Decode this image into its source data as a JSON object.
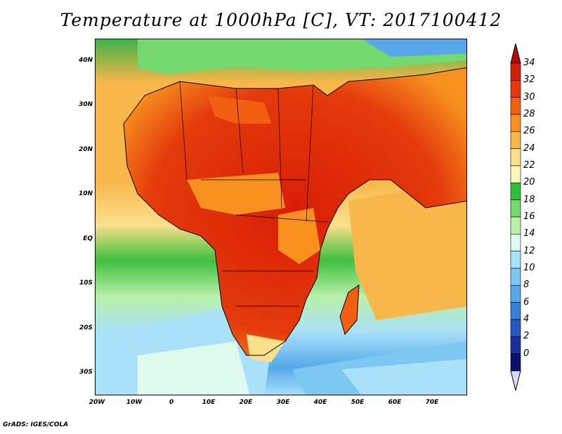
{
  "title": "Temperature at 1000hPa [C], VT: 2017100412",
  "footer": "GrADS: IGES/COLA",
  "map": {
    "variable": "Temperature at 1000hPa",
    "units": "C",
    "valid_time": "2017100412",
    "lon_range": [
      -20,
      80
    ],
    "lat_range": [
      -35,
      45
    ],
    "y_ticks": [
      {
        "lat": 40,
        "label": "40N"
      },
      {
        "lat": 30,
        "label": "30N"
      },
      {
        "lat": 20,
        "label": "20N"
      },
      {
        "lat": 10,
        "label": "10N"
      },
      {
        "lat": 0,
        "label": "EQ"
      },
      {
        "lat": -10,
        "label": "10S"
      },
      {
        "lat": -20,
        "label": "20S"
      },
      {
        "lat": -30,
        "label": "30S"
      }
    ],
    "x_ticks": [
      {
        "lon": -20,
        "label": "20W"
      },
      {
        "lon": -10,
        "label": "10W"
      },
      {
        "lon": 0,
        "label": "0"
      },
      {
        "lon": 10,
        "label": "10E"
      },
      {
        "lon": 20,
        "label": "20E"
      },
      {
        "lon": 30,
        "label": "30E"
      },
      {
        "lon": 40,
        "label": "40E"
      },
      {
        "lon": 50,
        "label": "50E"
      },
      {
        "lon": 60,
        "label": "60E"
      },
      {
        "lon": 70,
        "label": "70E"
      }
    ]
  },
  "colorbar": {
    "labels": [
      "34",
      "32",
      "30",
      "28",
      "26",
      "24",
      "22",
      "20",
      "18",
      "16",
      "14",
      "12",
      "10",
      "8",
      "6",
      "4",
      "2",
      "0"
    ],
    "colors": [
      "#d21f06",
      "#e43a0b",
      "#f25f12",
      "#f7901f",
      "#f8b74a",
      "#fbe08c",
      "#fbf7b9",
      "#2fbf3b",
      "#74d86f",
      "#b9f0a8",
      "#def9ee",
      "#a9e1f8",
      "#7cc8f2",
      "#56a8e9",
      "#3a7ed8",
      "#2957c2",
      "#1b2f9c",
      "#0c0f6e"
    ],
    "top_arrow_color": "#b50a02",
    "bottom_arrow_color": "#ddd8f5"
  }
}
